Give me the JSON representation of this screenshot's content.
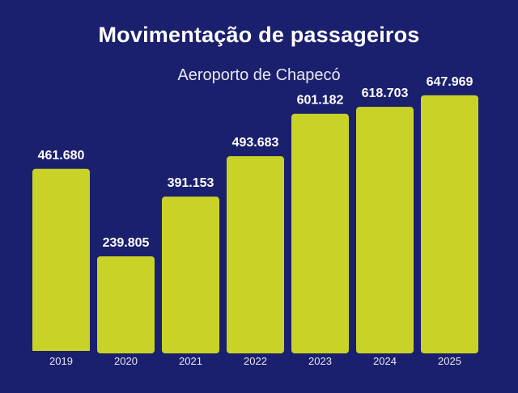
{
  "colors": {
    "background": "#1a1f6e",
    "bar": "#c9d327",
    "text": "#ffffff"
  },
  "chart_data": {
    "type": "bar",
    "title": "Movimentação de passageiros",
    "subtitle": "Aeroporto de Chapecó",
    "xlabel": "",
    "ylabel": "",
    "categories": [
      "2019",
      "2020",
      "2021",
      "2022",
      "2023",
      "2024",
      "2025"
    ],
    "values": [
      461680,
      239805,
      391153,
      493683,
      601182,
      618703,
      647969
    ],
    "value_labels": [
      "461.680",
      "239.805",
      "391.153",
      "493.683",
      "601.182",
      "618.703",
      "647.969"
    ],
    "ylim": [
      0,
      660000
    ],
    "grid": false,
    "legend": "none"
  }
}
